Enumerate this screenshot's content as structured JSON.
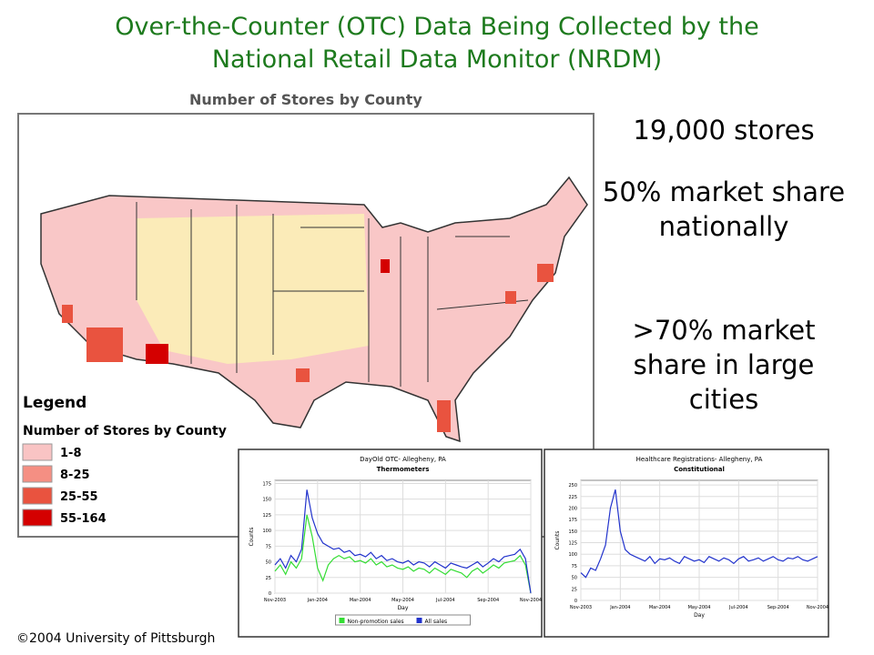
{
  "header": {
    "title_lines": [
      "Over-the-Counter (OTC) Data Being Collected by the",
      "National Retail Data Monitor (NRDM)"
    ]
  },
  "map": {
    "title": "Number of Stores by County",
    "legend_heading": "Legend",
    "legend_title": "Number of Stores by County",
    "legend_items": [
      {
        "label": "1-8",
        "color": "#f9c4c4"
      },
      {
        "label": "8-25",
        "color": "#f58f83"
      },
      {
        "label": "25-55",
        "color": "#e9533f"
      },
      {
        "label": "55-164",
        "color": "#d40000"
      }
    ]
  },
  "bullets": [
    "19,000 stores",
    "50% market share nationally",
    ">70% market share in large cities"
  ],
  "footer": "©2004 University of Pittsburgh",
  "chart_data": [
    {
      "type": "line",
      "title": "DayOld OTC- Allegheny, PA",
      "subtitle": "Thermometers",
      "x_label": "Day",
      "y_label": "Counts",
      "categories": [
        "Nov-2003",
        null,
        null,
        null,
        null,
        null,
        null,
        null,
        "Jan-2004",
        null,
        null,
        null,
        null,
        null,
        null,
        null,
        "Mar-2004",
        null,
        null,
        null,
        null,
        null,
        null,
        null,
        "May-2004",
        null,
        null,
        null,
        null,
        null,
        null,
        null,
        "Jul-2004",
        null,
        null,
        null,
        null,
        null,
        null,
        null,
        "Sep-2004",
        null,
        null,
        null,
        null,
        null,
        null,
        null,
        "Nov-2004"
      ],
      "series": [
        {
          "name": "Non-promotion sales",
          "color": "#33dd33",
          "values": [
            35,
            45,
            30,
            50,
            40,
            55,
            125,
            90,
            40,
            20,
            45,
            55,
            60,
            55,
            58,
            50,
            52,
            48,
            55,
            45,
            50,
            42,
            45,
            40,
            38,
            42,
            35,
            40,
            38,
            32,
            40,
            35,
            30,
            38,
            35,
            32,
            25,
            35,
            40,
            32,
            38,
            45,
            40,
            48,
            50,
            52,
            60,
            45,
            0
          ]
        },
        {
          "name": "All sales",
          "color": "#2233cc",
          "values": [
            45,
            55,
            40,
            60,
            50,
            70,
            165,
            120,
            95,
            80,
            75,
            70,
            72,
            65,
            68,
            60,
            62,
            58,
            65,
            55,
            60,
            52,
            55,
            50,
            48,
            52,
            45,
            50,
            48,
            42,
            50,
            45,
            40,
            48,
            45,
            42,
            40,
            45,
            50,
            42,
            48,
            55,
            50,
            58,
            60,
            62,
            70,
            55,
            0
          ]
        }
      ],
      "ylim": [
        0,
        180
      ],
      "yticks": [
        0,
        25,
        50,
        75,
        100,
        125,
        150,
        175
      ],
      "grid": true,
      "legend": "bottom"
    },
    {
      "type": "line",
      "title": "Healthcare Registrations- Allegheny, PA",
      "subtitle": "Constitutional",
      "x_label": "Day",
      "y_label": "Counts",
      "categories": [
        "Nov-2003",
        null,
        null,
        null,
        null,
        null,
        null,
        null,
        "Jan-2004",
        null,
        null,
        null,
        null,
        null,
        null,
        null,
        "Mar-2004",
        null,
        null,
        null,
        null,
        null,
        null,
        null,
        "May-2004",
        null,
        null,
        null,
        null,
        null,
        null,
        null,
        "Jul-2004",
        null,
        null,
        null,
        null,
        null,
        null,
        null,
        "Sep-2004",
        null,
        null,
        null,
        null,
        null,
        null,
        null,
        "Nov-2004"
      ],
      "series": [
        {
          "color": "#2233cc",
          "values": [
            60,
            50,
            70,
            65,
            90,
            120,
            200,
            240,
            150,
            110,
            100,
            95,
            90,
            85,
            95,
            80,
            90,
            88,
            92,
            85,
            80,
            95,
            90,
            85,
            88,
            82,
            95,
            90,
            85,
            92,
            88,
            80,
            90,
            95,
            85,
            88,
            92,
            85,
            90,
            95,
            88,
            85,
            92,
            90,
            95,
            88,
            85,
            90,
            95
          ]
        }
      ],
      "ylim": [
        0,
        260
      ],
      "yticks": [
        0,
        25,
        50,
        75,
        100,
        125,
        150,
        175,
        200,
        225,
        250
      ],
      "grid": true
    }
  ]
}
